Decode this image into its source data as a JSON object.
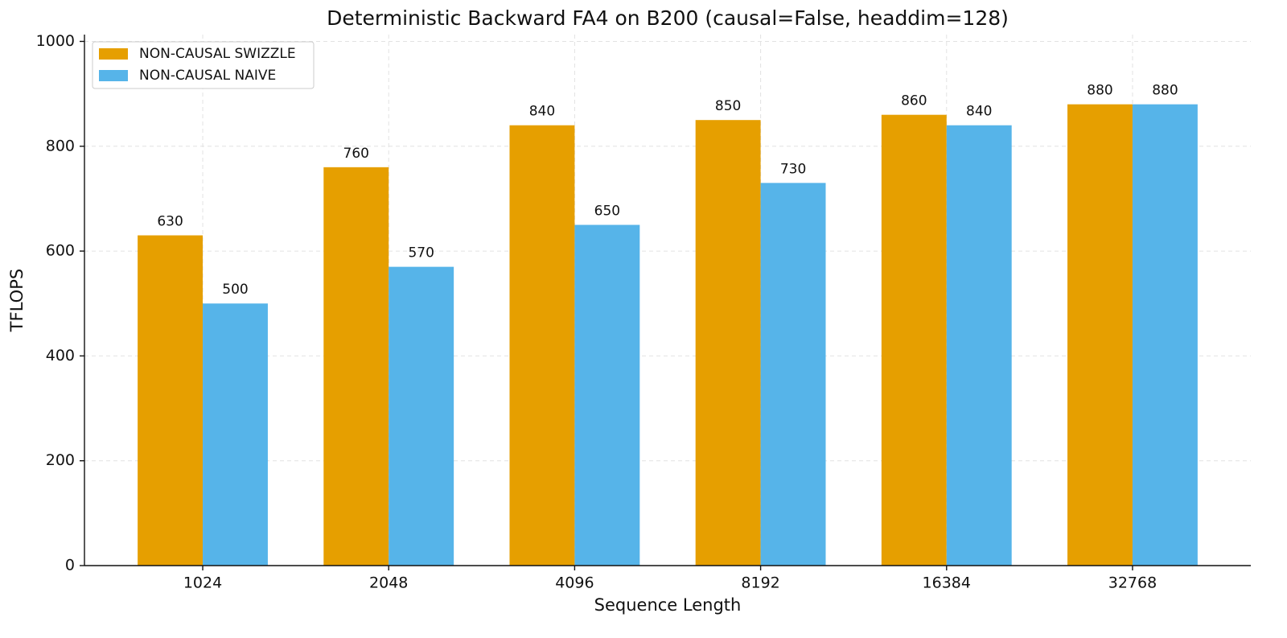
{
  "chart_data": {
    "type": "bar",
    "title": "Deterministic Backward FA4 on B200 (causal=False, headdim=128)",
    "x_label": "Sequence Length",
    "y_label": "TFLOPS",
    "categories": [
      "1024",
      "2048",
      "4096",
      "8192",
      "16384",
      "32768"
    ],
    "series": [
      {
        "name": "NON-CAUSAL SWIZZLE",
        "color": "#e69f00",
        "values": [
          630,
          760,
          840,
          850,
          860,
          880
        ]
      },
      {
        "name": "NON-CAUSAL NAIVE",
        "color": "#56b4e9",
        "values": [
          500,
          570,
          650,
          730,
          840,
          880
        ]
      }
    ],
    "ylim": [
      0,
      1013
    ],
    "yticks": [
      0,
      200,
      400,
      600,
      800,
      1000
    ],
    "grid": true,
    "legend": "upper-left"
  }
}
